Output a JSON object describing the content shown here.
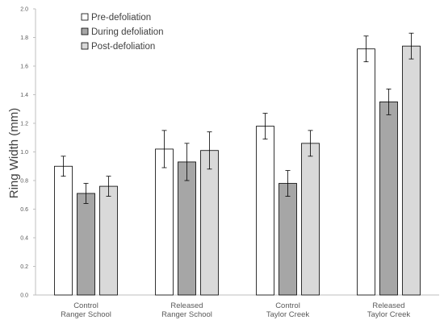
{
  "chart_data": {
    "type": "bar",
    "ylabel": "Ring Width (mm)",
    "ylim": [
      0,
      2.0
    ],
    "yticks": [
      "0.0",
      "0.2",
      "0.4",
      "0.6",
      "0.8",
      "1.0",
      "1.2",
      "1.4",
      "1.6",
      "1.8",
      "2.0"
    ],
    "grid": false,
    "legend_position": "top-left",
    "categories": [
      [
        "Control",
        "Ranger School"
      ],
      [
        "Released",
        "Ranger School"
      ],
      [
        "Control",
        "Taylor Creek"
      ],
      [
        "Released",
        "Taylor Creek"
      ]
    ],
    "series": [
      {
        "name": "Pre-defoliation",
        "color": "#ffffff",
        "values": [
          0.9,
          1.02,
          1.18,
          1.72
        ],
        "errors": [
          0.07,
          0.13,
          0.09,
          0.09
        ]
      },
      {
        "name": "During defoliation",
        "color": "#a6a6a6",
        "values": [
          0.71,
          0.93,
          0.78,
          1.35
        ],
        "errors": [
          0.07,
          0.13,
          0.09,
          0.09
        ]
      },
      {
        "name": "Post-defoliation",
        "color": "#d9d9d9",
        "values": [
          0.76,
          1.01,
          1.06,
          1.74
        ],
        "errors": [
          0.07,
          0.13,
          0.09,
          0.09
        ]
      }
    ]
  }
}
